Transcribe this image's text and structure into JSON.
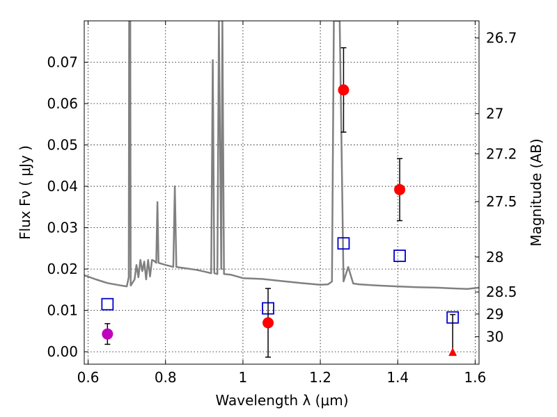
{
  "chart_data": {
    "type": "scatter",
    "title": "",
    "xlabel": "Wavelength  λ (μm)",
    "ylabel": "Flux  Fν  ( μJy )",
    "y2label": "Magnitude (AB)",
    "xlim": [
      0.59,
      1.61
    ],
    "ylim": [
      -0.003,
      0.08
    ],
    "grid": true,
    "x_ticks": [
      {
        "value": 0.6,
        "label": "0.6"
      },
      {
        "value": 0.8,
        "label": "0.8"
      },
      {
        "value": 1.0,
        "label": "1"
      },
      {
        "value": 1.2,
        "label": "1.2"
      },
      {
        "value": 1.4,
        "label": "1.4"
      },
      {
        "value": 1.6,
        "label": "1.6"
      }
    ],
    "y_ticks": [
      {
        "value": 0.0,
        "label": "0.00"
      },
      {
        "value": 0.01,
        "label": "0.01"
      },
      {
        "value": 0.02,
        "label": "0.02"
      },
      {
        "value": 0.03,
        "label": "0.03"
      },
      {
        "value": 0.04,
        "label": "0.04"
      },
      {
        "value": 0.05,
        "label": "0.05"
      },
      {
        "value": 0.06,
        "label": "0.06"
      },
      {
        "value": 0.07,
        "label": "0.07"
      }
    ],
    "y2_ticks": [
      {
        "value": 26.7,
        "label": "26.7"
      },
      {
        "value": 27.0,
        "label": "27"
      },
      {
        "value": 27.2,
        "label": "27.2"
      },
      {
        "value": 27.5,
        "label": "27.5"
      },
      {
        "value": 28.0,
        "label": "28"
      },
      {
        "value": 28.5,
        "label": "28.5"
      },
      {
        "value": 29.0,
        "label": "29"
      },
      {
        "value": 30.0,
        "label": "30"
      }
    ],
    "model_color": "#808080",
    "model_spectrum": [
      [
        0.59,
        0.0185
      ],
      [
        0.62,
        0.0175
      ],
      [
        0.65,
        0.0166
      ],
      [
        0.68,
        0.0161
      ],
      [
        0.7,
        0.0158
      ],
      [
        0.705,
        0.018
      ],
      [
        0.706,
        0.08
      ],
      [
        0.709,
        0.08
      ],
      [
        0.71,
        0.016
      ],
      [
        0.72,
        0.0175
      ],
      [
        0.725,
        0.021
      ],
      [
        0.73,
        0.018
      ],
      [
        0.735,
        0.0222
      ],
      [
        0.74,
        0.0195
      ],
      [
        0.745,
        0.0218
      ],
      [
        0.75,
        0.0175
      ],
      [
        0.755,
        0.0222
      ],
      [
        0.76,
        0.0182
      ],
      [
        0.765,
        0.0222
      ],
      [
        0.77,
        0.022
      ],
      [
        0.776,
        0.0215
      ],
      [
        0.779,
        0.0362
      ],
      [
        0.782,
        0.0215
      ],
      [
        0.8,
        0.021
      ],
      [
        0.82,
        0.0205
      ],
      [
        0.824,
        0.04
      ],
      [
        0.828,
        0.0205
      ],
      [
        0.85,
        0.0202
      ],
      [
        0.88,
        0.0198
      ],
      [
        0.9,
        0.0194
      ],
      [
        0.918,
        0.019
      ],
      [
        0.922,
        0.0705
      ],
      [
        0.926,
        0.019
      ],
      [
        0.934,
        0.0188
      ],
      [
        0.938,
        0.08
      ],
      [
        0.944,
        0.02
      ],
      [
        0.947,
        0.08
      ],
      [
        0.951,
        0.0188
      ],
      [
        0.97,
        0.0186
      ],
      [
        1.0,
        0.0178
      ],
      [
        1.05,
        0.0176
      ],
      [
        1.1,
        0.0171
      ],
      [
        1.15,
        0.0166
      ],
      [
        1.2,
        0.0162
      ],
      [
        1.22,
        0.0163
      ],
      [
        1.23,
        0.017
      ],
      [
        1.235,
        0.08
      ],
      [
        1.25,
        0.08
      ],
      [
        1.26,
        0.017
      ],
      [
        1.272,
        0.0205
      ],
      [
        1.285,
        0.0165
      ],
      [
        1.3,
        0.0163
      ],
      [
        1.35,
        0.016
      ],
      [
        1.4,
        0.0158
      ],
      [
        1.45,
        0.0156
      ],
      [
        1.5,
        0.0155
      ],
      [
        1.55,
        0.0153
      ],
      [
        1.58,
        0.0152
      ],
      [
        1.61,
        0.0155
      ]
    ],
    "observed": [
      {
        "x": 0.65,
        "y": 0.0043,
        "err": 0.0025,
        "color": "#bf00bf",
        "marker": "circle"
      },
      {
        "x": 1.065,
        "y": 0.007,
        "err": 0.0083,
        "color": "#ff0000",
        "marker": "circle"
      },
      {
        "x": 1.26,
        "y": 0.0633,
        "err": 0.0102,
        "color": "#ff0000",
        "marker": "circle"
      },
      {
        "x": 1.405,
        "y": 0.0392,
        "err": 0.0075,
        "color": "#ff0000",
        "marker": "circle"
      },
      {
        "x": 1.542,
        "y": -0.0002,
        "err_up": 0.0092,
        "color": "#ff0000",
        "marker": "triangle"
      }
    ],
    "model_photometry": [
      {
        "x": 0.65,
        "y": 0.0115,
        "color": "#0000cc",
        "marker": "square"
      },
      {
        "x": 1.065,
        "y": 0.0105,
        "color": "#0000cc",
        "marker": "square"
      },
      {
        "x": 1.26,
        "y": 0.0262,
        "color": "#0000cc",
        "marker": "square"
      },
      {
        "x": 1.405,
        "y": 0.0232,
        "color": "#0000cc",
        "marker": "square"
      },
      {
        "x": 1.542,
        "y": 0.0083,
        "color": "#0000cc",
        "marker": "square"
      }
    ]
  }
}
